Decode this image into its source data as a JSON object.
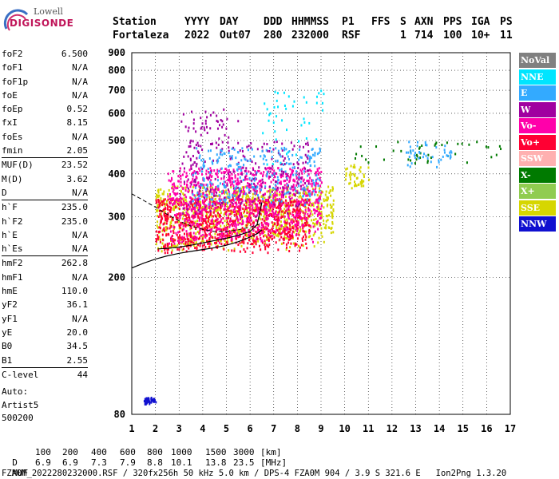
{
  "logo": {
    "brand_top": "Lowell",
    "brand_bottom": "DIGISONDE"
  },
  "header": {
    "columns": [
      "Station",
      "YYYY",
      "DAY",
      "DDD",
      "HHMMSS",
      "P1",
      "FFS",
      "S",
      "AXN",
      "PPS",
      "IGA",
      "PS"
    ],
    "values": [
      "Fortaleza",
      "2022",
      "Out07",
      "280",
      "232000",
      "RSF",
      "",
      "1",
      "714",
      "100",
      "10+",
      "11"
    ]
  },
  "params": [
    {
      "group": [
        {
          "label": "foF2",
          "value": "6.500"
        },
        {
          "label": "foF1",
          "value": "N/A"
        },
        {
          "label": "foF1p",
          "value": "N/A"
        },
        {
          "label": "foE",
          "value": "N/A"
        },
        {
          "label": "foEp",
          "value": "0.52"
        },
        {
          "label": "fxI",
          "value": "8.15"
        },
        {
          "label": "foEs",
          "value": "N/A"
        },
        {
          "label": "fmin",
          "value": "2.05"
        }
      ]
    },
    {
      "group": [
        {
          "label": "MUF(D)",
          "value": "23.52"
        },
        {
          "label": "M(D)",
          "value": "3.62"
        },
        {
          "label": "D",
          "value": "N/A"
        }
      ]
    },
    {
      "group": [
        {
          "label": "h`F",
          "value": "235.0"
        },
        {
          "label": "h`F2",
          "value": "235.0"
        },
        {
          "label": "h`E",
          "value": "N/A"
        },
        {
          "label": "h`Es",
          "value": "N/A"
        }
      ]
    },
    {
      "group": [
        {
          "label": "hmF2",
          "value": "262.8"
        },
        {
          "label": "hmF1",
          "value": "N/A"
        },
        {
          "label": "hmE",
          "value": "110.0"
        },
        {
          "label": "yF2",
          "value": "36.1"
        },
        {
          "label": "yF1",
          "value": "N/A"
        },
        {
          "label": "yE",
          "value": "20.0"
        },
        {
          "label": "B0",
          "value": "34.5"
        },
        {
          "label": "B1",
          "value": "2.55"
        }
      ]
    },
    {
      "group": [
        {
          "label": "C-level",
          "value": "44"
        }
      ]
    }
  ],
  "auto": {
    "line1": "Auto:",
    "line2": "Artist5",
    "line3": "500200"
  },
  "bottom": {
    "d_label": "D",
    "d_values": [
      "100",
      "200",
      "400",
      "600",
      "800",
      "1000",
      "1500",
      "3000"
    ],
    "d_unit": "[km]",
    "muf_label": "MUF",
    "muf_values": [
      "6.9",
      "6.9",
      "7.3",
      "7.9",
      "8.8",
      "10.1",
      "13.8",
      "23.5"
    ],
    "muf_unit": "[MHz]",
    "footer": "FZA0M_2022280232000.RSF / 320fx256h 50 kHz 5.0 km / DPS-4 FZA0M 904 / 3.9 S 321.6 E   Ion2Png 1.3.20"
  },
  "legend": [
    {
      "label": "NoVal",
      "color": "#808080"
    },
    {
      "label": "NNE",
      "color": "#00e5ff"
    },
    {
      "label": "E",
      "color": "#33aaff"
    },
    {
      "label": "W",
      "color": "#a000a0"
    },
    {
      "label": "Vo-",
      "color": "#ff00aa"
    },
    {
      "label": "Vo+",
      "color": "#ff0033"
    },
    {
      "label": "SSW",
      "color": "#ffb0b0"
    },
    {
      "label": "X-",
      "color": "#007a00"
    },
    {
      "label": "X+",
      "color": "#90cc50"
    },
    {
      "label": "SSE",
      "color": "#d6d600"
    },
    {
      "label": "NNW",
      "color": "#1010d0"
    }
  ],
  "chart_data": {
    "type": "scatter",
    "title": "",
    "xlabel": "",
    "ylabel": "",
    "xlim": [
      1,
      17
    ],
    "ylim": [
      80,
      900
    ],
    "y_scale": "log",
    "xticks": [
      1,
      2,
      3,
      4,
      5,
      6,
      7,
      8,
      9,
      10,
      11,
      12,
      13,
      14,
      15,
      16,
      17
    ],
    "yticks": [
      80,
      200,
      300,
      400,
      500,
      600,
      700,
      800,
      900
    ],
    "grid": true,
    "echo_regions": [
      {
        "mode": "SSE",
        "x": [
          2.0,
          9.5
        ],
        "y": [
          240,
          370
        ],
        "density": "high"
      },
      {
        "mode": "Vo+",
        "x": [
          2.0,
          8.5
        ],
        "y": [
          235,
          340
        ],
        "density": "high"
      },
      {
        "mode": "Vo-",
        "x": [
          2.5,
          9.0
        ],
        "y": [
          250,
          420
        ],
        "density": "high"
      },
      {
        "mode": "W",
        "x": [
          3.0,
          8.5
        ],
        "y": [
          300,
          500
        ],
        "density": "medium"
      },
      {
        "mode": "E",
        "x": [
          3.5,
          9.0
        ],
        "y": [
          320,
          480
        ],
        "density": "medium"
      },
      {
        "mode": "NNE",
        "x": [
          6.5,
          9.2
        ],
        "y": [
          420,
          720
        ],
        "density": "low"
      },
      {
        "mode": "SSE",
        "x": [
          10.0,
          11.0
        ],
        "y": [
          360,
          430
        ],
        "density": "low"
      },
      {
        "mode": "X-",
        "x": [
          10.3,
          16.8
        ],
        "y": [
          420,
          500
        ],
        "density": "low"
      },
      {
        "mode": "E",
        "x": [
          12.5,
          14.5
        ],
        "y": [
          420,
          500
        ],
        "density": "low"
      },
      {
        "mode": "NNW",
        "x": [
          1.5,
          2.0
        ],
        "y": [
          86,
          90
        ],
        "density": "low"
      },
      {
        "mode": "W",
        "x": [
          3.0,
          5.5
        ],
        "y": [
          480,
          620
        ],
        "density": "low"
      }
    ],
    "profile_curve": {
      "x": [
        1.0,
        1.5,
        2.0,
        2.5,
        3.0,
        3.5,
        4.0,
        4.5,
        5.0,
        5.5,
        6.0,
        6.3,
        6.5
      ],
      "y": [
        213,
        220,
        226,
        231,
        235,
        238,
        241,
        244,
        248,
        254,
        262,
        268,
        275
      ]
    },
    "profile_extension": {
      "x": [
        1.0,
        1.5,
        2.0,
        2.5,
        3.0,
        3.5,
        4.0,
        4.5,
        5.0,
        5.5,
        6.0,
        6.5
      ],
      "y": [
        350,
        335,
        320,
        305,
        292,
        282,
        276,
        272,
        272,
        275,
        280,
        287
      ]
    },
    "trace_curve": {
      "x": [
        2.1,
        2.5,
        3.0,
        3.5,
        4.0,
        4.5,
        5.0,
        5.5,
        6.0,
        6.3,
        6.5
      ],
      "y": [
        242,
        243,
        245,
        248,
        252,
        256,
        260,
        265,
        272,
        285,
        330
      ]
    }
  }
}
